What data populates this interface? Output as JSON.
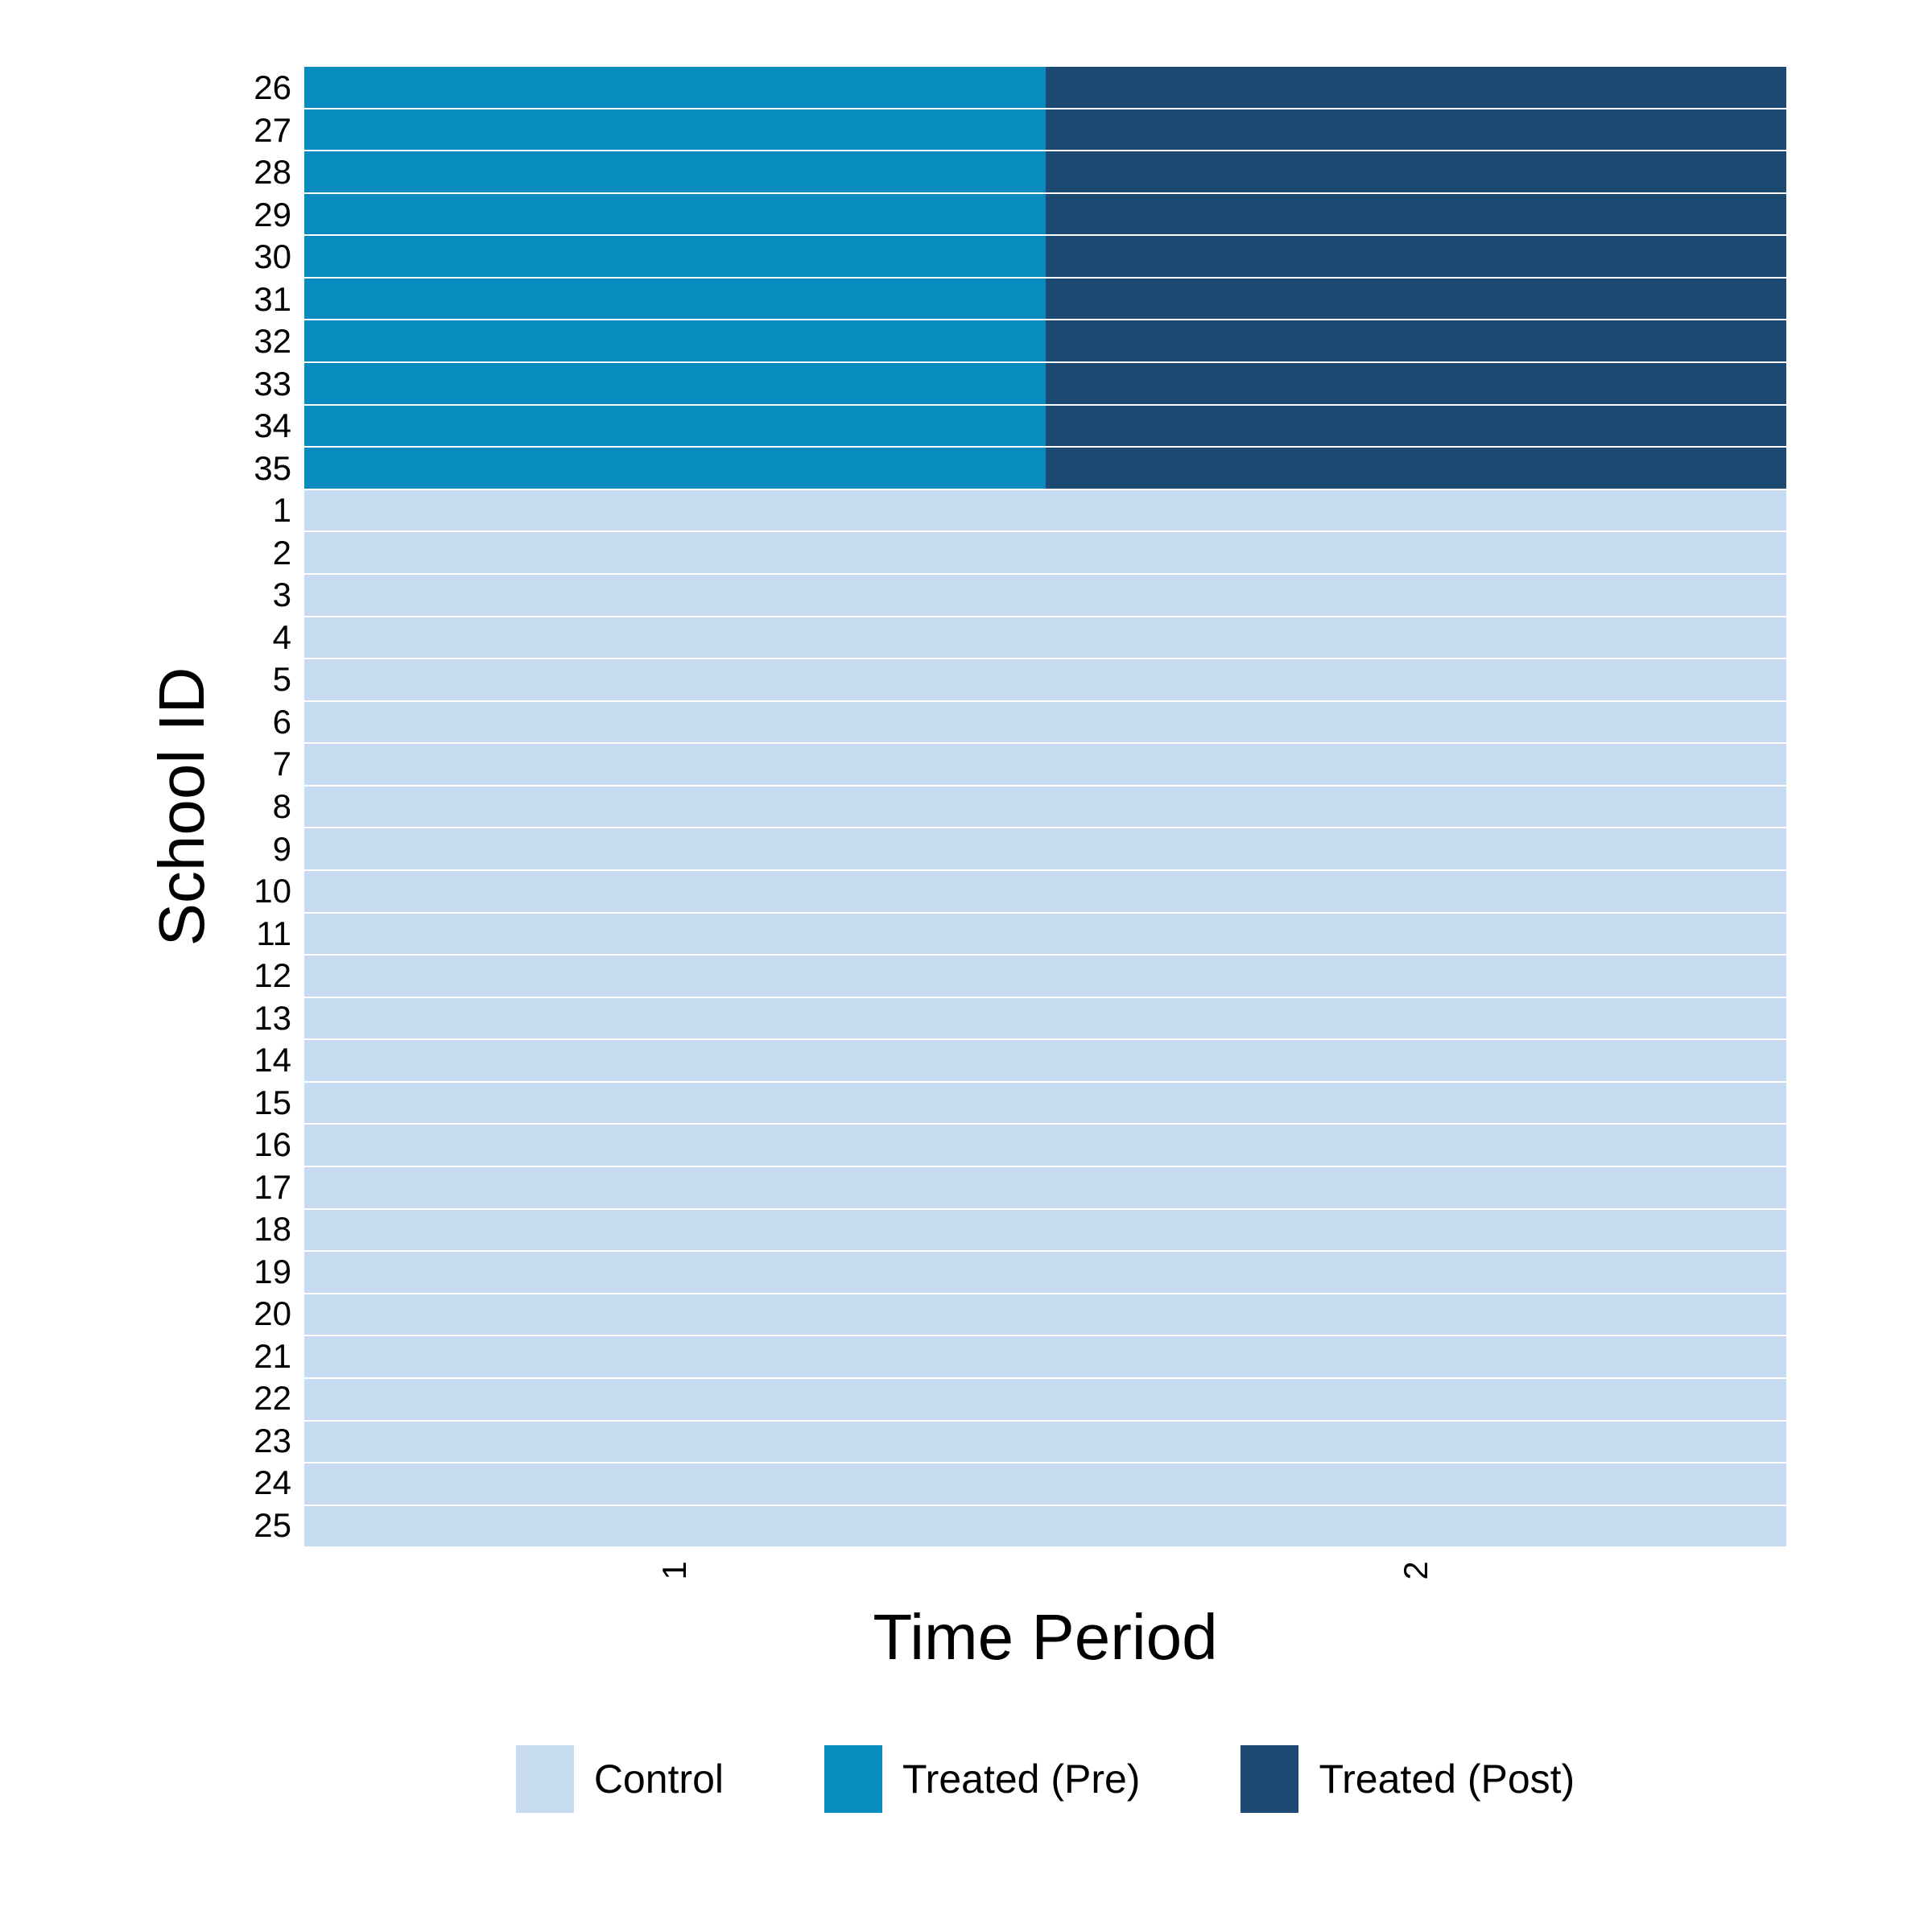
{
  "chart_data": {
    "type": "heatmap",
    "title": "",
    "xlabel": "Time Period",
    "ylabel": "School ID",
    "x_tick_labels": [
      "1",
      "2"
    ],
    "x_categories_count": 2,
    "y_categories_count": 35,
    "grid": "off",
    "axis_ticks": "off",
    "panel_background": "#ffffff",
    "row_gap_line_color": "rgba(255,255,255,0.35)",
    "legend": {
      "position": "bottom",
      "entries": [
        {
          "label": "Control",
          "status_key": "control",
          "color": "#c6dbef"
        },
        {
          "label": "Treated (Pre)",
          "status_key": "treated_pre",
          "color": "#088cbf"
        },
        {
          "label": "Treated (Post)",
          "status_key": "treated_post",
          "color": "#1d4a73"
        }
      ]
    },
    "rows_top_to_bottom": [
      {
        "school_id": "26",
        "period_1": "treated_pre",
        "period_2": "treated_post"
      },
      {
        "school_id": "27",
        "period_1": "treated_pre",
        "period_2": "treated_post"
      },
      {
        "school_id": "28",
        "period_1": "treated_pre",
        "period_2": "treated_post"
      },
      {
        "school_id": "29",
        "period_1": "treated_pre",
        "period_2": "treated_post"
      },
      {
        "school_id": "30",
        "period_1": "treated_pre",
        "period_2": "treated_post"
      },
      {
        "school_id": "31",
        "period_1": "treated_pre",
        "period_2": "treated_post"
      },
      {
        "school_id": "32",
        "period_1": "treated_pre",
        "period_2": "treated_post"
      },
      {
        "school_id": "33",
        "period_1": "treated_pre",
        "period_2": "treated_post"
      },
      {
        "school_id": "34",
        "period_1": "treated_pre",
        "period_2": "treated_post"
      },
      {
        "school_id": "35",
        "period_1": "treated_pre",
        "period_2": "treated_post"
      },
      {
        "school_id": "1",
        "period_1": "control",
        "period_2": "control"
      },
      {
        "school_id": "2",
        "period_1": "control",
        "period_2": "control"
      },
      {
        "school_id": "3",
        "period_1": "control",
        "period_2": "control"
      },
      {
        "school_id": "4",
        "period_1": "control",
        "period_2": "control"
      },
      {
        "school_id": "5",
        "period_1": "control",
        "period_2": "control"
      },
      {
        "school_id": "6",
        "period_1": "control",
        "period_2": "control"
      },
      {
        "school_id": "7",
        "period_1": "control",
        "period_2": "control"
      },
      {
        "school_id": "8",
        "period_1": "control",
        "period_2": "control"
      },
      {
        "school_id": "9",
        "period_1": "control",
        "period_2": "control"
      },
      {
        "school_id": "10",
        "period_1": "control",
        "period_2": "control"
      },
      {
        "school_id": "11",
        "period_1": "control",
        "period_2": "control"
      },
      {
        "school_id": "12",
        "period_1": "control",
        "period_2": "control"
      },
      {
        "school_id": "13",
        "period_1": "control",
        "period_2": "control"
      },
      {
        "school_id": "14",
        "period_1": "control",
        "period_2": "control"
      },
      {
        "school_id": "15",
        "period_1": "control",
        "period_2": "control"
      },
      {
        "school_id": "16",
        "period_1": "control",
        "period_2": "control"
      },
      {
        "school_id": "17",
        "period_1": "control",
        "period_2": "control"
      },
      {
        "school_id": "18",
        "period_1": "control",
        "period_2": "control"
      },
      {
        "school_id": "19",
        "period_1": "control",
        "period_2": "control"
      },
      {
        "school_id": "20",
        "period_1": "control",
        "period_2": "control"
      },
      {
        "school_id": "21",
        "period_1": "control",
        "period_2": "control"
      },
      {
        "school_id": "22",
        "period_1": "control",
        "period_2": "control"
      },
      {
        "school_id": "23",
        "period_1": "control",
        "period_2": "control"
      },
      {
        "school_id": "24",
        "period_1": "control",
        "period_2": "control"
      },
      {
        "school_id": "25",
        "period_1": "control",
        "period_2": "control"
      }
    ]
  }
}
